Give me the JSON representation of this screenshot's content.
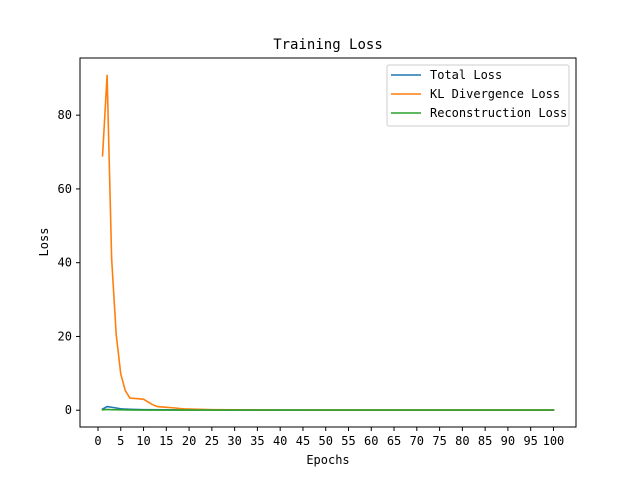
{
  "chart_data": {
    "type": "line",
    "title": "Training Loss",
    "xlabel": "Epochs",
    "ylabel": "Loss",
    "xlim": [
      -3.95,
      104.95
    ],
    "ylim": [
      -4.55,
      95.5
    ],
    "xticks": [
      0,
      5,
      10,
      15,
      20,
      25,
      30,
      35,
      40,
      45,
      50,
      55,
      60,
      65,
      70,
      75,
      80,
      85,
      90,
      95,
      100
    ],
    "yticks": [
      0,
      20,
      40,
      60,
      80
    ],
    "grid": false,
    "legend_position": "top-right",
    "series": [
      {
        "name": "Total Loss",
        "color": "#1f77b4",
        "x": [
          1,
          2,
          3,
          4,
          5,
          6,
          7,
          8,
          9,
          10,
          15,
          20,
          25,
          30,
          35,
          40,
          45,
          50,
          55,
          60,
          65,
          70,
          75,
          80,
          85,
          90,
          95,
          100
        ],
        "y": [
          0.3,
          1.0,
          0.8,
          0.6,
          0.4,
          0.3,
          0.25,
          0.2,
          0.18,
          0.15,
          0.1,
          0.08,
          0.06,
          0.05,
          0.05,
          0.05,
          0.05,
          0.05,
          0.05,
          0.05,
          0.05,
          0.05,
          0.05,
          0.05,
          0.05,
          0.05,
          0.05,
          0.05
        ]
      },
      {
        "name": "KL Divergence Loss",
        "color": "#ff7f0e",
        "x": [
          1,
          2,
          3,
          4,
          5,
          6,
          7,
          8,
          9,
          10,
          11,
          12,
          13,
          14,
          15,
          16,
          17,
          18,
          19,
          20,
          22,
          25,
          30,
          35,
          40,
          50,
          60,
          70,
          80,
          90,
          100
        ],
        "y": [
          69.0,
          90.8,
          41.0,
          20.5,
          9.8,
          5.3,
          3.3,
          3.2,
          3.1,
          3.0,
          2.2,
          1.5,
          1.0,
          0.9,
          0.8,
          0.7,
          0.6,
          0.45,
          0.35,
          0.3,
          0.25,
          0.15,
          0.1,
          0.08,
          0.06,
          0.05,
          0.04,
          0.04,
          0.03,
          0.03,
          0.03
        ]
      },
      {
        "name": "Reconstruction Loss",
        "color": "#2ca02c",
        "x": [
          1,
          2,
          3,
          5,
          10,
          20,
          30,
          40,
          50,
          60,
          70,
          80,
          90,
          100
        ],
        "y": [
          0.1,
          0.2,
          0.15,
          0.1,
          0.05,
          0.04,
          0.03,
          0.03,
          0.03,
          0.03,
          0.03,
          0.03,
          0.03,
          0.03
        ]
      }
    ]
  }
}
